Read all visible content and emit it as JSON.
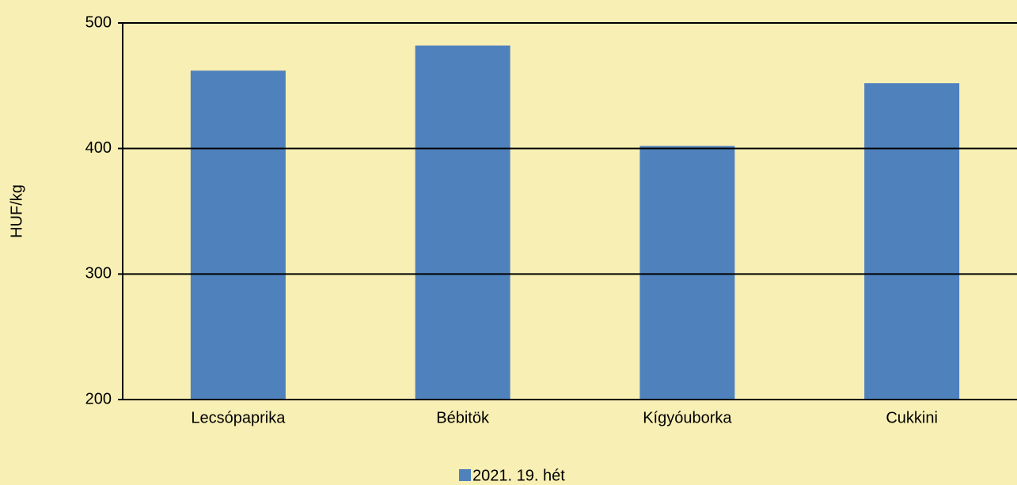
{
  "chart_data": {
    "type": "bar",
    "y_label": "HUF/kg",
    "categories": [
      "Lecsópaprika",
      "Bébitök",
      "Kígyóuborka",
      "Cukkini"
    ],
    "series": [
      {
        "name": "2021. 19. hét",
        "color": "#4f81bd",
        "values": [
          462,
          482,
          402,
          452
        ]
      }
    ],
    "ylim": [
      200,
      500
    ],
    "yticks": [
      200,
      300,
      400,
      500
    ],
    "grid": true,
    "legend": "bottom"
  }
}
